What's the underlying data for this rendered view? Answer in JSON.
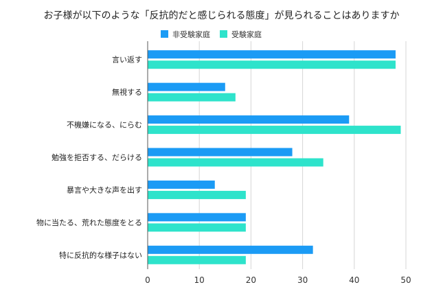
{
  "chart_data": {
    "type": "bar",
    "orientation": "horizontal",
    "title": "お子様が以下のような「反抗的だと感じられる態度」が見られることはありますか",
    "categories": [
      "言い返す",
      "無視する",
      "不機嫌になる、にらむ",
      "勉強を拒否する、だらける",
      "暴言や大きな声を出す",
      "物に当たる、荒れた態度をとる",
      "特に反抗的な様子はない"
    ],
    "series": [
      {
        "name": "非受験家庭",
        "color": "#1b9bf5",
        "values": [
          48,
          15,
          39,
          28,
          13,
          19,
          32
        ]
      },
      {
        "name": "受験家庭",
        "color": "#2ee3cb",
        "values": [
          48,
          17,
          49,
          34,
          19,
          19,
          19
        ]
      }
    ],
    "xlim": [
      0,
      50
    ],
    "xticks": [
      0,
      10,
      20,
      30,
      40,
      50
    ],
    "grid": true,
    "legend_position": "top"
  }
}
